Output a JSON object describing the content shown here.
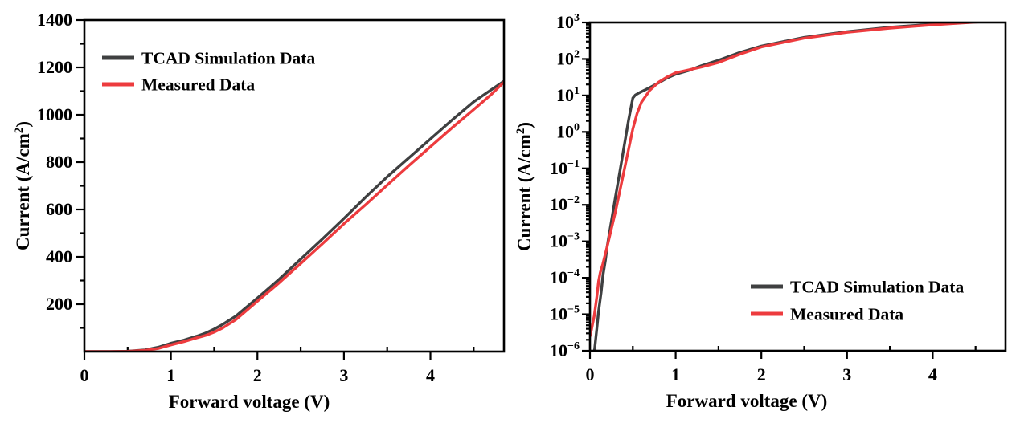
{
  "figure": {
    "background": "#ffffff",
    "axis_color": "#000000",
    "series_colors": {
      "tcad": "#3f4041",
      "measured": "#ed3b3e"
    }
  },
  "chart_data": [
    {
      "id": "linear",
      "type": "line",
      "yscale": "linear",
      "title": "",
      "xlabel": "Forward voltage (V)",
      "ylabel": "Current (A/cm²)",
      "ylabel_parts": {
        "pre": "Current (A/cm",
        "sup": "2",
        "post": ")"
      },
      "xlim": [
        0,
        4.85
      ],
      "ylim": [
        0,
        1400
      ],
      "xticks": {
        "values": [
          0,
          1,
          2,
          3,
          4
        ],
        "labels": [
          "0",
          "1",
          "2",
          "3",
          "4"
        ],
        "minor_step": 0.5
      },
      "yticks": {
        "values": [
          200,
          400,
          600,
          800,
          1000,
          1200,
          1400
        ],
        "labels": [
          "200",
          "400",
          "600",
          "800",
          "1000",
          "1200",
          "1400"
        ],
        "minor_step": 100
      },
      "grid": false,
      "legend": {
        "position": "top-left"
      },
      "series": [
        {
          "name": "TCAD Simulation Data",
          "color_key": "tcad",
          "points": [
            [
              0,
              0
            ],
            [
              0.3,
              0.2
            ],
            [
              0.5,
              1.5
            ],
            [
              0.7,
              7
            ],
            [
              0.85,
              18
            ],
            [
              1,
              35
            ],
            [
              1.15,
              48
            ],
            [
              1.3,
              65
            ],
            [
              1.4,
              78
            ],
            [
              1.5,
              95
            ],
            [
              1.6,
              115
            ],
            [
              1.75,
              150
            ],
            [
              2,
              226
            ],
            [
              2.25,
              305
            ],
            [
              2.5,
              390
            ],
            [
              2.75,
              475
            ],
            [
              3,
              562
            ],
            [
              3.25,
              652
            ],
            [
              3.5,
              738
            ],
            [
              3.75,
              818
            ],
            [
              4,
              898
            ],
            [
              4.25,
              978
            ],
            [
              4.5,
              1055
            ],
            [
              4.7,
              1105
            ],
            [
              4.85,
              1142
            ]
          ]
        },
        {
          "name": "Measured Data",
          "color_key": "measured",
          "points": [
            [
              0,
              0
            ],
            [
              0.3,
              0.1
            ],
            [
              0.5,
              1
            ],
            [
              0.7,
              5
            ],
            [
              0.85,
              13
            ],
            [
              1,
              28
            ],
            [
              1.15,
              42
            ],
            [
              1.3,
              58
            ],
            [
              1.4,
              68
            ],
            [
              1.5,
              82
            ],
            [
              1.6,
              100
            ],
            [
              1.75,
              135
            ],
            [
              2,
              213
            ],
            [
              2.25,
              290
            ],
            [
              2.5,
              372
            ],
            [
              2.75,
              455
            ],
            [
              3,
              540
            ],
            [
              3.25,
              620
            ],
            [
              3.5,
              703
            ],
            [
              3.75,
              785
            ],
            [
              4,
              865
            ],
            [
              4.25,
              945
            ],
            [
              4.5,
              1022
            ],
            [
              4.7,
              1085
            ],
            [
              4.85,
              1138
            ]
          ]
        }
      ]
    },
    {
      "id": "log",
      "type": "line",
      "yscale": "log",
      "title": "",
      "xlabel": "Forward voltage (V)",
      "ylabel": "Current (A/cm²)",
      "ylabel_parts": {
        "pre": "Current (A/cm",
        "sup": "2",
        "post": ")"
      },
      "xlim": [
        0,
        4.85
      ],
      "ylim_exponents": [
        -6,
        3
      ],
      "xticks": {
        "values": [
          0,
          1,
          2,
          3,
          4
        ],
        "labels": [
          "0",
          "1",
          "2",
          "3",
          "4"
        ],
        "minor_step": 0.5
      },
      "yticks": {
        "exponents": [
          3,
          2,
          1,
          0,
          -1,
          -2,
          -3,
          -4,
          -5,
          -6
        ],
        "base": "10"
      },
      "grid": false,
      "legend": {
        "position": "bottom-right"
      },
      "series": [
        {
          "name": "TCAD Simulation Data",
          "color_key": "tcad",
          "points": [
            [
              0.048,
              8e-07
            ],
            [
              0.08,
              4e-06
            ],
            [
              0.1,
              1.2e-05
            ],
            [
              0.13,
              4e-05
            ],
            [
              0.15,
              0.00011
            ],
            [
              0.18,
              0.0003
            ],
            [
              0.2,
              0.0007
            ],
            [
              0.25,
              0.0035
            ],
            [
              0.3,
              0.018
            ],
            [
              0.35,
              0.085
            ],
            [
              0.4,
              0.42
            ],
            [
              0.45,
              2.1
            ],
            [
              0.5,
              8.5
            ],
            [
              0.53,
              10.3
            ],
            [
              0.58,
              12
            ],
            [
              0.65,
              14.5
            ],
            [
              0.7,
              16.5
            ],
            [
              0.8,
              22
            ],
            [
              0.9,
              30
            ],
            [
              1,
              38
            ],
            [
              1.15,
              48
            ],
            [
              1.3,
              65
            ],
            [
              1.5,
              92
            ],
            [
              1.75,
              150
            ],
            [
              2,
              226
            ],
            [
              2.5,
              390
            ],
            [
              3,
              562
            ],
            [
              3.5,
              738
            ],
            [
              4,
              898
            ],
            [
              4.5,
              1055
            ],
            [
              4.85,
              1142
            ]
          ]
        },
        {
          "name": "Measured Data",
          "color_key": "measured",
          "points": [
            [
              0,
              2.5e-06
            ],
            [
              0.02,
              4e-06
            ],
            [
              0.05,
              9e-06
            ],
            [
              0.08,
              3e-05
            ],
            [
              0.1,
              8e-05
            ],
            [
              0.12,
              0.00014
            ],
            [
              0.15,
              0.00024
            ],
            [
              0.2,
              0.0007
            ],
            [
              0.25,
              0.0022
            ],
            [
              0.3,
              0.007
            ],
            [
              0.35,
              0.025
            ],
            [
              0.4,
              0.09
            ],
            [
              0.45,
              0.33
            ],
            [
              0.5,
              1.2
            ],
            [
              0.55,
              3.2
            ],
            [
              0.6,
              6.5
            ],
            [
              0.7,
              14
            ],
            [
              0.8,
              23
            ],
            [
              0.9,
              32
            ],
            [
              1,
              42
            ],
            [
              1.15,
              50
            ],
            [
              1.3,
              60
            ],
            [
              1.5,
              80
            ],
            [
              1.75,
              135
            ],
            [
              2,
              213
            ],
            [
              2.5,
              372
            ],
            [
              3,
              540
            ],
            [
              3.5,
              703
            ],
            [
              4,
              865
            ],
            [
              4.5,
              1022
            ],
            [
              4.85,
              1138
            ]
          ]
        }
      ]
    }
  ]
}
